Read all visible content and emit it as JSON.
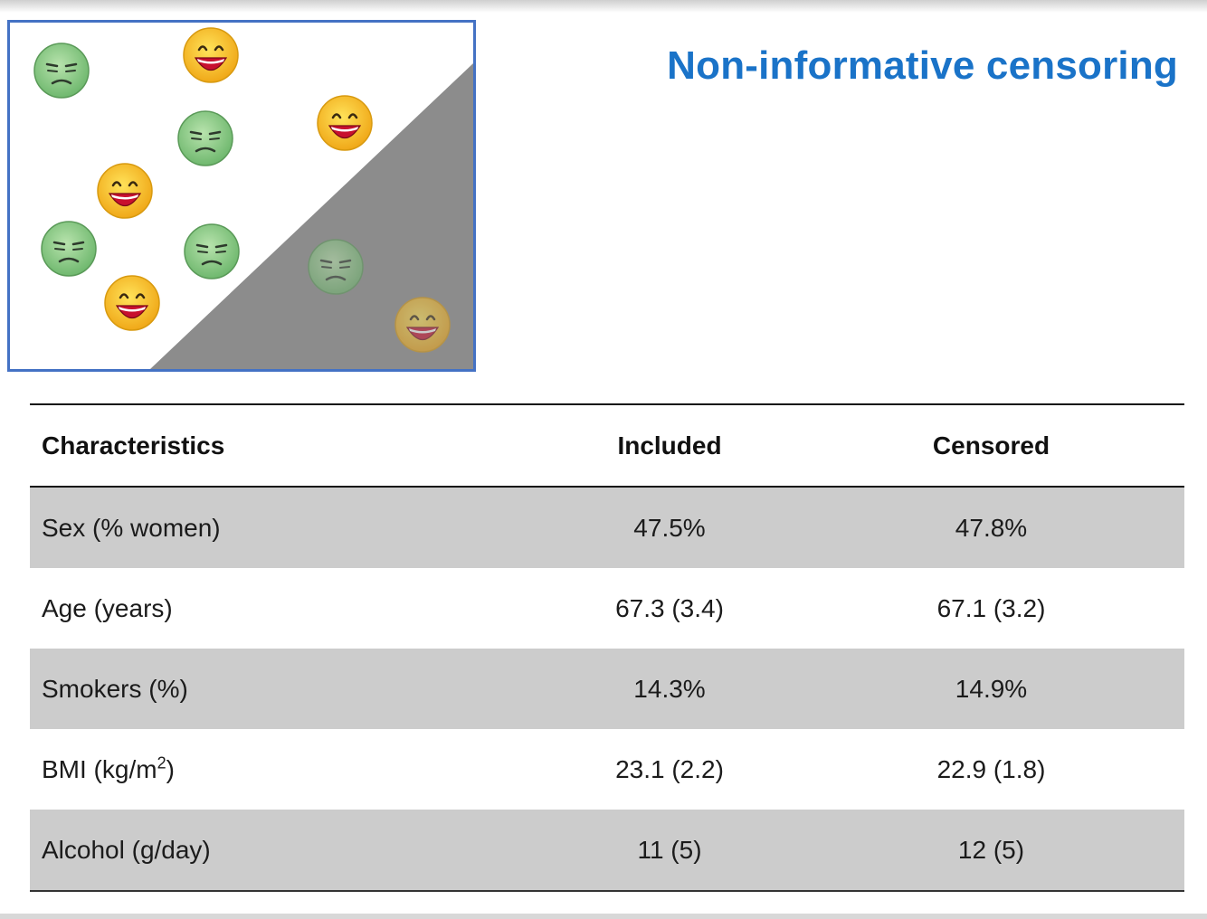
{
  "slide": {
    "title": "Non-informative censoring"
  },
  "figure": {
    "faces": [
      {
        "name": "sad-face-icon",
        "mood": "sad",
        "censored": false
      },
      {
        "name": "happy-face-icon",
        "mood": "happy",
        "censored": false
      },
      {
        "name": "sad-face-icon",
        "mood": "sad",
        "censored": false
      },
      {
        "name": "happy-face-icon",
        "mood": "happy",
        "censored": false
      },
      {
        "name": "happy-face-icon",
        "mood": "happy",
        "censored": false
      },
      {
        "name": "sad-face-icon",
        "mood": "sad",
        "censored": false
      },
      {
        "name": "sad-face-icon",
        "mood": "sad",
        "censored": false
      },
      {
        "name": "happy-face-icon",
        "mood": "happy",
        "censored": false
      },
      {
        "name": "sad-face-icon",
        "mood": "sad",
        "censored": true
      },
      {
        "name": "happy-face-icon",
        "mood": "happy",
        "censored": true
      }
    ],
    "colors": {
      "border": "#4472c4",
      "censored_region": "#8c8c8c",
      "sad_face": "#8bc98a",
      "happy_face": "#f7c52a"
    }
  },
  "table": {
    "headers": [
      "Characteristics",
      "Included",
      "Censored"
    ],
    "rows": [
      {
        "label": "Sex (% women)",
        "included": "47.5%",
        "censored": "47.8%"
      },
      {
        "label": "Age (years)",
        "included": "67.3 (3.4)",
        "censored": "67.1 (3.2)"
      },
      {
        "label": "Smokers (%)",
        "included": "14.3%",
        "censored": "14.9%"
      },
      {
        "label_main": "BMI (kg/m",
        "label_sup": "2",
        "label_end": ")",
        "included": "23.1 (2.2)",
        "censored": "22.9 (1.8)"
      },
      {
        "label": "Alcohol (g/day)",
        "included": "11 (5)",
        "censored": "12 (5)"
      }
    ]
  }
}
